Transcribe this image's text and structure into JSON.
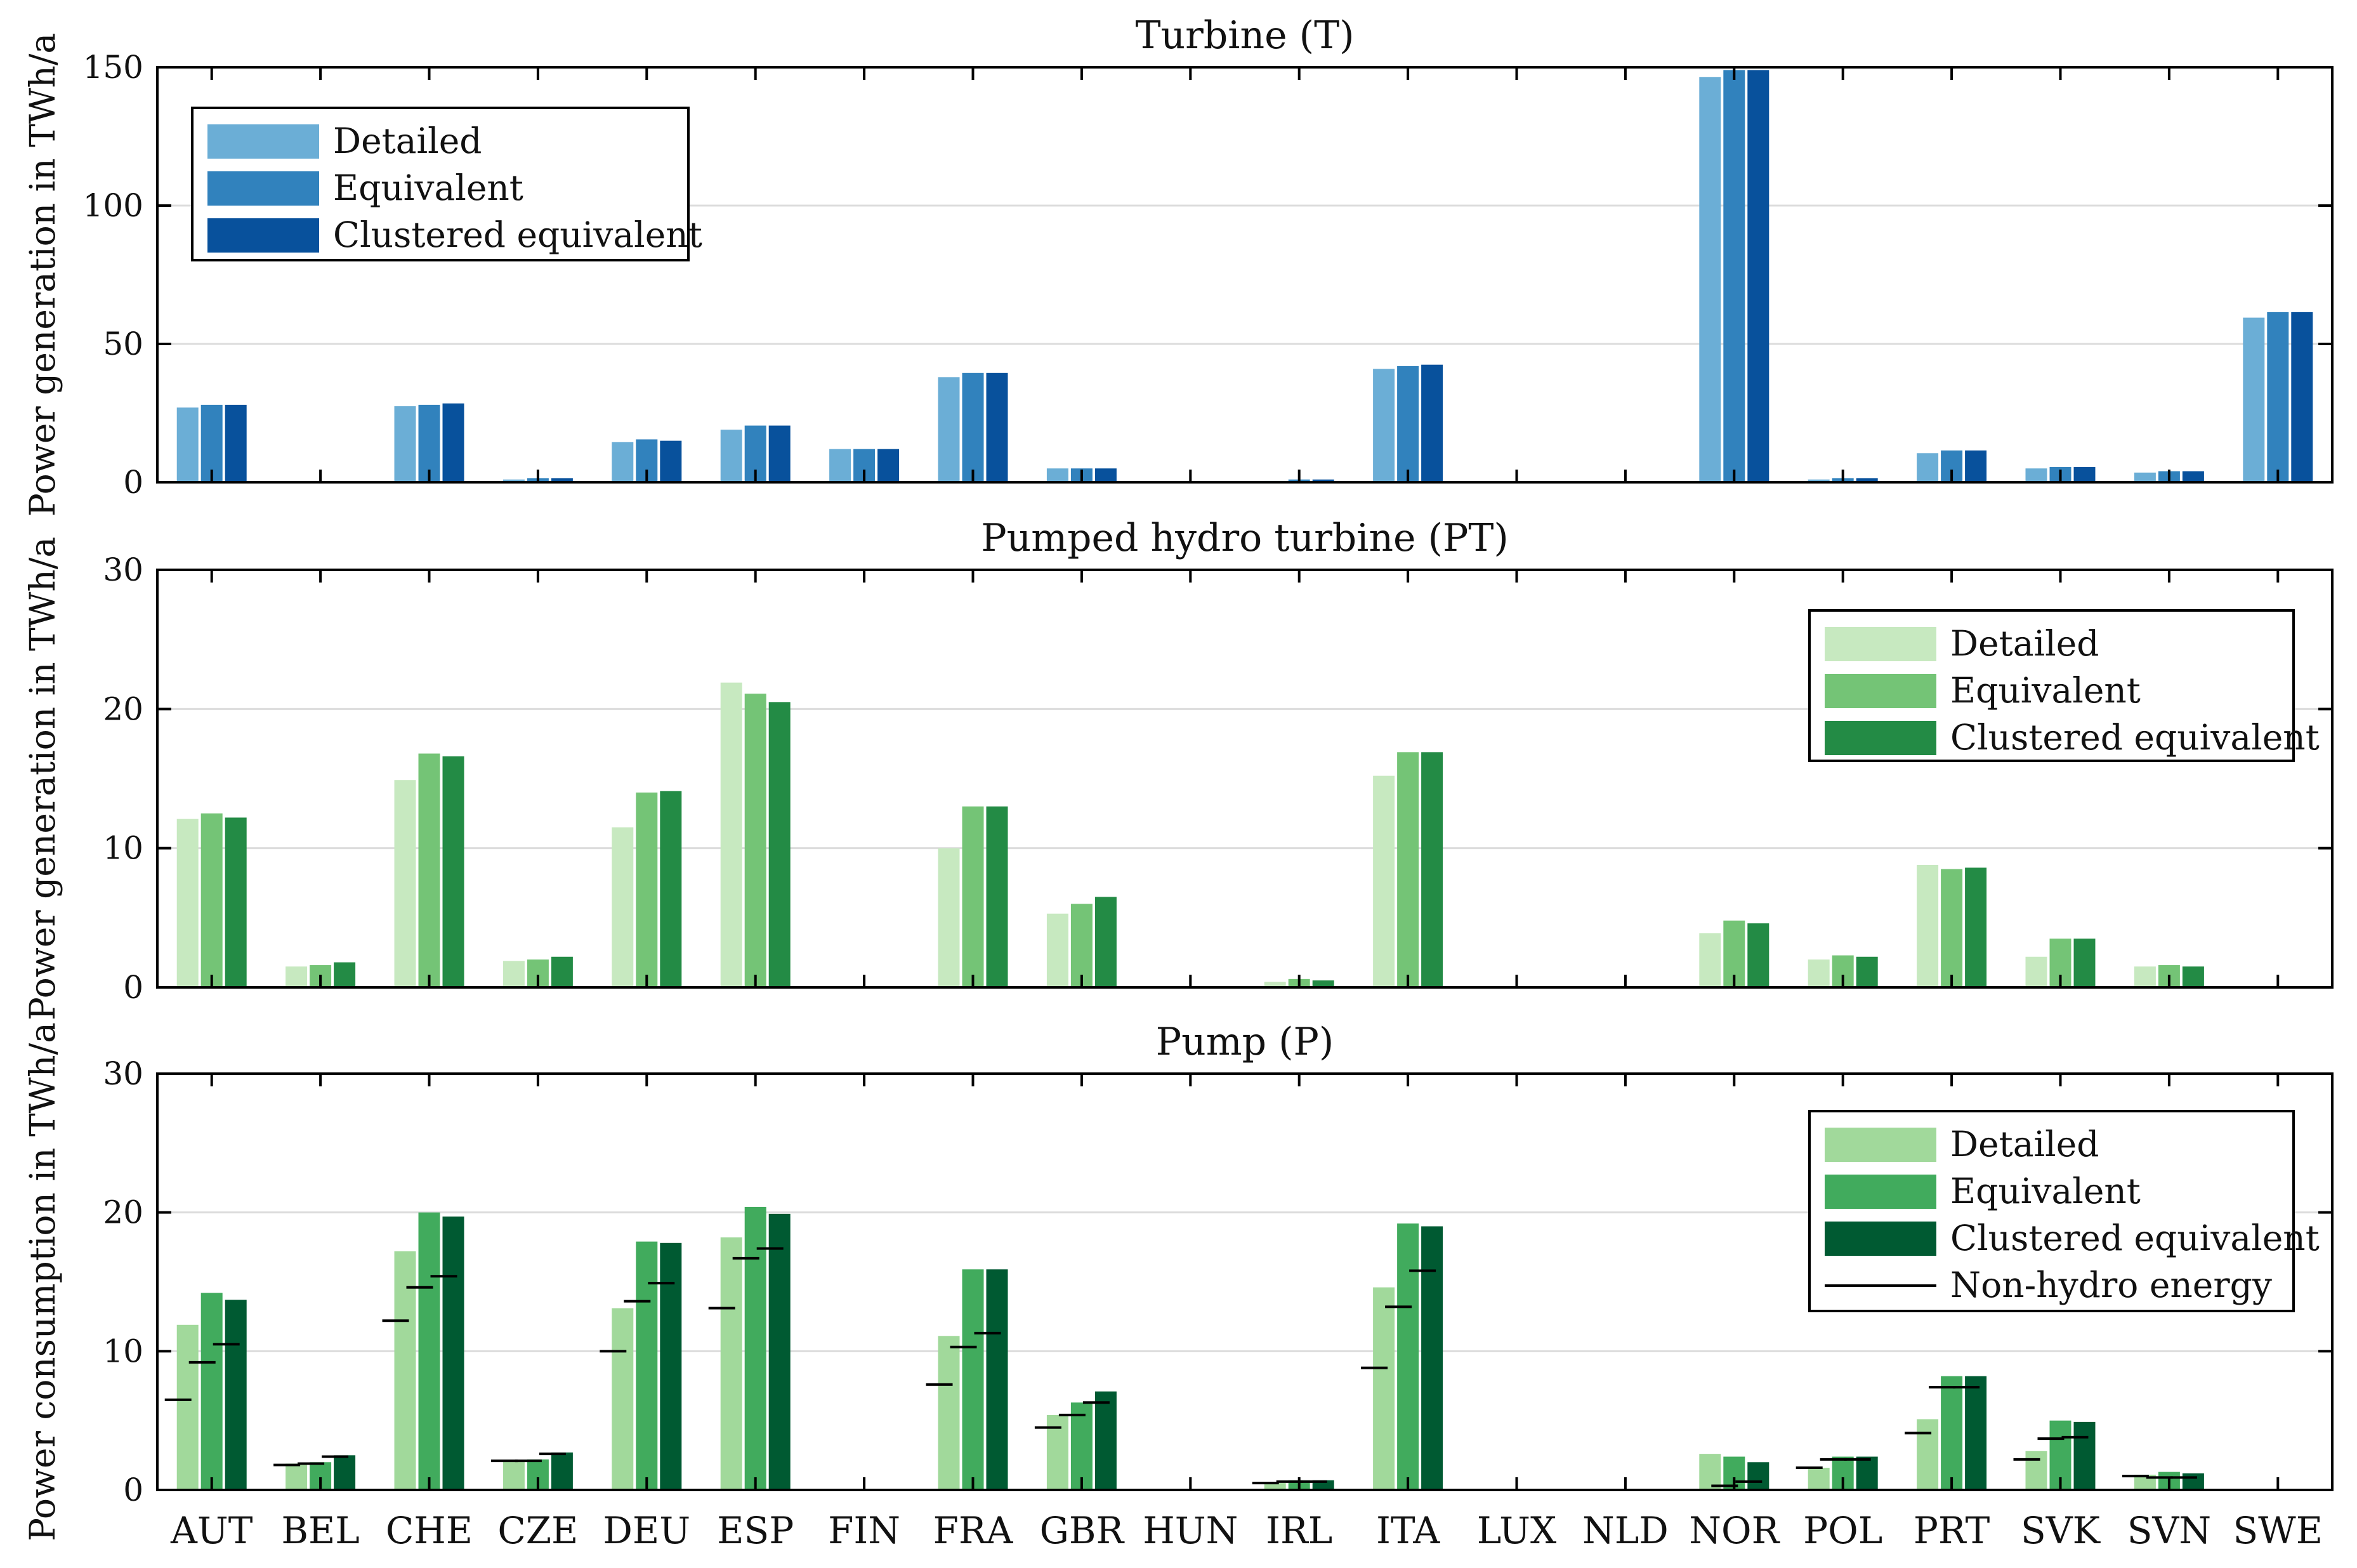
{
  "chart_data": {
    "type": "bar",
    "categories": [
      "AUT",
      "BEL",
      "CHE",
      "CZE",
      "DEU",
      "ESP",
      "FIN",
      "FRA",
      "GBR",
      "HUN",
      "IRL",
      "ITA",
      "LUX",
      "NLD",
      "NOR",
      "POL",
      "PRT",
      "SVK",
      "SVN",
      "SWE"
    ],
    "panels": [
      {
        "title": "Turbine (T)",
        "ylabel": "Power generation in TWh/a",
        "ylim": [
          0,
          150
        ],
        "yticks": [
          0,
          50,
          100,
          150
        ],
        "legend_position": "top-left",
        "series": [
          {
            "name": "Detailed",
            "color": "#6baed6",
            "values": [
              27,
              0,
              27.5,
              1,
              14.5,
              19,
              12,
              38,
              5,
              0,
              0.5,
              41,
              0,
              0,
              146.5,
              1,
              10.5,
              5,
              3.5,
              59.5
            ]
          },
          {
            "name": "Equivalent",
            "color": "#3182bd",
            "values": [
              28,
              0,
              28,
              1.5,
              15.5,
              20.5,
              12,
              39.5,
              5,
              0,
              1,
              42,
              0,
              0,
              149,
              1.5,
              11.5,
              5.5,
              4,
              61.5
            ]
          },
          {
            "name": "Clustered equivalent",
            "color": "#08519c",
            "values": [
              28,
              0,
              28.5,
              1.5,
              15,
              20.5,
              12,
              39.5,
              5,
              0,
              1,
              42.5,
              0,
              0,
              149,
              1.5,
              11.5,
              5.5,
              4,
              61.5
            ]
          }
        ]
      },
      {
        "title": "Pumped hydro turbine (PT)",
        "ylabel": "Power generation in TWh/a",
        "ylim": [
          0,
          30
        ],
        "yticks": [
          0,
          10,
          20,
          30
        ],
        "legend_position": "top-right",
        "series": [
          {
            "name": "Detailed",
            "color": "#c7e9c0",
            "values": [
              12.1,
              1.5,
              14.9,
              1.9,
              11.5,
              21.9,
              0,
              10,
              5.3,
              0,
              0.4,
              15.2,
              0,
              0,
              3.9,
              2,
              8.8,
              2.2,
              1.5,
              0
            ]
          },
          {
            "name": "Equivalent",
            "color": "#74c476",
            "values": [
              12.5,
              1.6,
              16.8,
              2,
              14,
              21.1,
              0,
              13,
              6,
              0,
              0.6,
              16.9,
              0,
              0,
              4.8,
              2.3,
              8.5,
              3.5,
              1.6,
              0
            ]
          },
          {
            "name": "Clustered equivalent",
            "color": "#238b45",
            "values": [
              12.2,
              1.8,
              16.6,
              2.2,
              14.1,
              20.5,
              0,
              13,
              6.5,
              0,
              0.5,
              16.9,
              0,
              0,
              4.6,
              2.2,
              8.6,
              3.5,
              1.5,
              0
            ]
          }
        ]
      },
      {
        "title": "Pump (P)",
        "ylabel": "Power consumption in TWh/a",
        "ylim": [
          0,
          30
        ],
        "yticks": [
          0,
          10,
          20,
          30
        ],
        "legend_position": "top-right",
        "series": [
          {
            "name": "Detailed",
            "color": "#a1d99b",
            "values": [
              11.9,
              1.9,
              17.2,
              2.1,
              13.1,
              18.2,
              0,
              11.1,
              5.4,
              0,
              0.5,
              14.6,
              0,
              0,
              2.6,
              1.6,
              5.1,
              2.8,
              1.1,
              0
            ]
          },
          {
            "name": "Equivalent",
            "color": "#41ab5d",
            "values": [
              14.2,
              2,
              20,
              2.2,
              17.9,
              20.4,
              0,
              15.9,
              6.3,
              0,
              0.7,
              19.2,
              0,
              0,
              2.4,
              2.4,
              8.2,
              5,
              1.3,
              0
            ]
          },
          {
            "name": "Clustered equivalent",
            "color": "#005a32",
            "values": [
              13.7,
              2.5,
              19.7,
              2.7,
              17.8,
              19.9,
              0,
              15.9,
              7.1,
              0,
              0.7,
              19,
              0,
              0,
              2,
              2.4,
              8.2,
              4.9,
              1.2,
              0
            ]
          }
        ],
        "marker_series": {
          "name": "Non-hydro energy",
          "values": [
            [
              6.5,
              9.2,
              10.5
            ],
            [
              1.8,
              1.9,
              2.4
            ],
            [
              12.2,
              14.6,
              15.4
            ],
            [
              2.1,
              2.1,
              2.6
            ],
            [
              10,
              13.6,
              14.9
            ],
            [
              13.1,
              16.7,
              17.4
            ],
            [
              0,
              0,
              0
            ],
            [
              7.6,
              10.3,
              11.3
            ],
            [
              4.5,
              5.4,
              6.3
            ],
            [
              0,
              0,
              0
            ],
            [
              0.5,
              0.6,
              0.6
            ],
            [
              8.8,
              13.2,
              15.8
            ],
            [
              0,
              0,
              0
            ],
            [
              0,
              0,
              0
            ],
            [
              0,
              0.3,
              0.6
            ],
            [
              1.6,
              2.2,
              2.2
            ],
            [
              4.1,
              7.4,
              7.4
            ],
            [
              2.2,
              3.7,
              3.8
            ],
            [
              1,
              0.9,
              0.9
            ],
            [
              0,
              0,
              0
            ]
          ]
        }
      }
    ]
  }
}
